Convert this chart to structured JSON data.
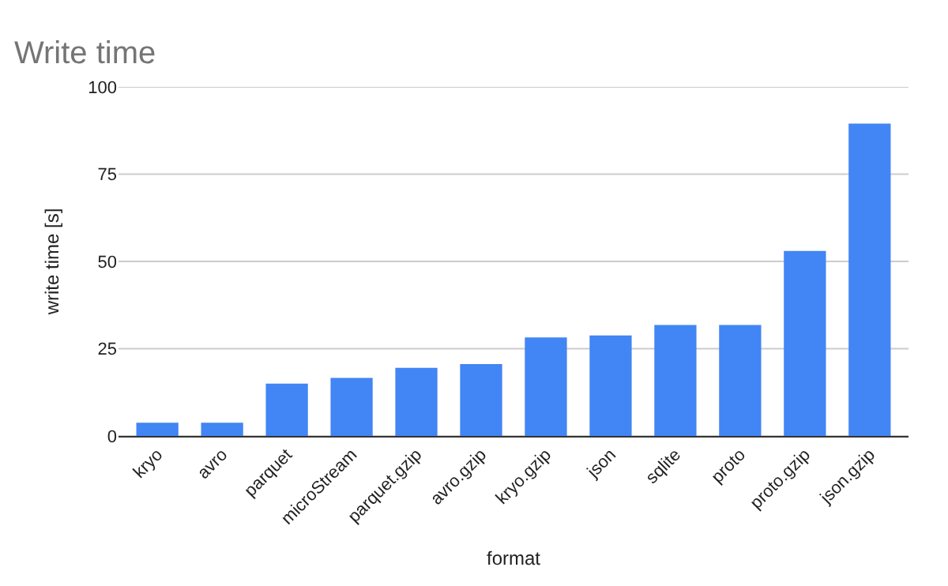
{
  "chart_data": {
    "type": "bar",
    "title": "Write time",
    "xlabel": "format",
    "ylabel": "write time [s]",
    "categories": [
      "kryo",
      "avro",
      "parquet",
      "microStream",
      "parquet.gzip",
      "avro.gzip",
      "kryo.gzip",
      "json",
      "sqlite",
      "proto",
      "proto.gzip",
      "json.gzip"
    ],
    "values": [
      3.8,
      3.8,
      15.0,
      16.6,
      19.5,
      20.6,
      28.2,
      28.8,
      31.8,
      31.8,
      53.0,
      89.5
    ],
    "color": "#4285f4",
    "ylim": [
      0,
      100
    ],
    "yticks": [
      0,
      25,
      50,
      75,
      100
    ],
    "grid": "y"
  }
}
